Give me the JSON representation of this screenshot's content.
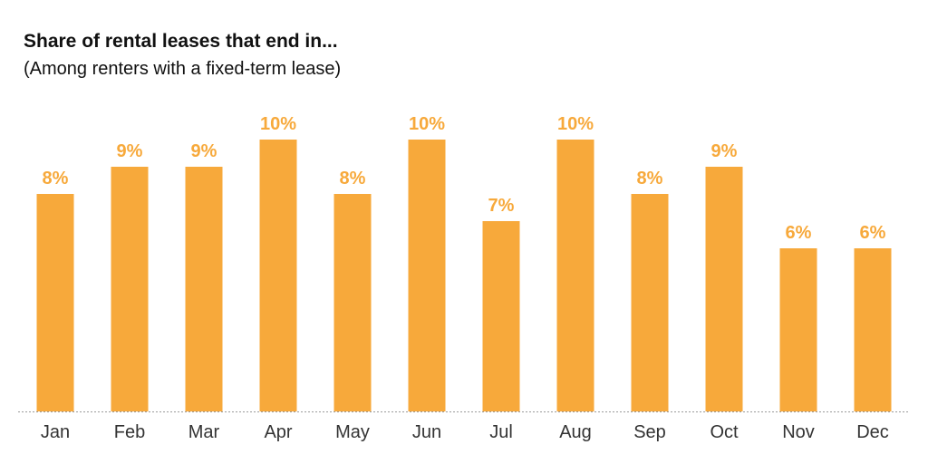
{
  "colors": {
    "bar": "#f7a93b",
    "label": "#f7a93b",
    "axis": "#9a9a9a",
    "tick_text": "#333333",
    "title_text": "#111111"
  },
  "chart_data": {
    "type": "bar",
    "title": "Share of rental leases that end in...",
    "subtitle": "(Among renters with a fixed-term lease)",
    "categories": [
      "Jan",
      "Feb",
      "Mar",
      "Apr",
      "May",
      "Jun",
      "Jul",
      "Aug",
      "Sep",
      "Oct",
      "Nov",
      "Dec"
    ],
    "values": [
      8,
      9,
      9,
      10,
      8,
      10,
      7,
      10,
      8,
      9,
      6,
      6
    ],
    "data_labels": [
      "8%",
      "9%",
      "9%",
      "10%",
      "8%",
      "10%",
      "7%",
      "10%",
      "8%",
      "9%",
      "6%",
      "6%"
    ],
    "unit": "%",
    "ylim": [
      0,
      10
    ],
    "grid": false,
    "legend": "none"
  }
}
